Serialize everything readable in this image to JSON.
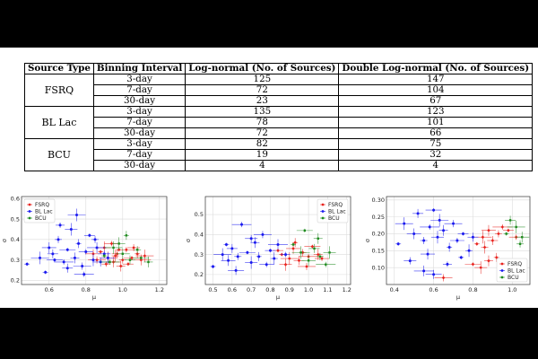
{
  "table": {
    "headers": [
      "Source Type",
      "Binning Interval",
      "Log-normal (No. of Sources)",
      "Double Log-normal (No. of Sources)"
    ],
    "groups": [
      {
        "source": "FSRQ",
        "rows": [
          {
            "interval": "3-day",
            "lognormal": "125",
            "double": "147"
          },
          {
            "interval": "7-day",
            "lognormal": "72",
            "double": "104"
          },
          {
            "interval": "30-day",
            "lognormal": "23",
            "double": "67"
          }
        ]
      },
      {
        "source": "BL Lac",
        "rows": [
          {
            "interval": "3-day",
            "lognormal": "135",
            "double": "123"
          },
          {
            "interval": "7-day",
            "lognormal": "78",
            "double": "101"
          },
          {
            "interval": "30-day",
            "lognormal": "72",
            "double": "66"
          }
        ]
      },
      {
        "source": "BCU",
        "rows": [
          {
            "interval": "3-day",
            "lognormal": "82",
            "double": "75"
          },
          {
            "interval": "7-day",
            "lognormal": "19",
            "double": "32"
          },
          {
            "interval": "30-day",
            "lognormal": "4",
            "double": "4"
          }
        ]
      }
    ]
  },
  "colors": {
    "FSRQ": "#e8231e",
    "BL Lac": "#1a1aef",
    "BCU": "#1f8a1f"
  },
  "chart_data": [
    {
      "type": "scatter",
      "xlabel": "μ",
      "ylabel": "σ",
      "xlim": [
        0.45,
        1.24
      ],
      "ylim": [
        0.18,
        0.61
      ],
      "xticks": [
        0.6,
        0.8,
        1.0,
        1.2
      ],
      "yticks": [
        0.2,
        0.3,
        0.4,
        0.5,
        0.6
      ],
      "xtick_labels": [
        "0.6",
        "0.8",
        "1.0",
        "1.2"
      ],
      "ytick_labels": [
        "0.2",
        "0.3",
        "0.4",
        "0.5",
        "0.6"
      ],
      "grid": true,
      "legend": "top-left",
      "series": [
        {
          "name": "FSRQ",
          "points": [
            [
              0.88,
              0.34
            ],
            [
              0.92,
              0.31
            ],
            [
              0.95,
              0.29
            ],
            [
              0.97,
              0.33
            ],
            [
              1.0,
              0.3
            ],
            [
              1.02,
              0.35
            ],
            [
              1.05,
              0.31
            ],
            [
              0.9,
              0.36
            ],
            [
              0.99,
              0.27
            ],
            [
              1.08,
              0.33
            ],
            [
              0.86,
              0.3
            ],
            [
              0.94,
              0.38
            ],
            [
              1.03,
              0.28
            ],
            [
              0.96,
              0.32
            ],
            [
              1.1,
              0.3
            ],
            [
              0.84,
              0.33
            ],
            [
              1.06,
              0.36
            ],
            [
              0.91,
              0.28
            ],
            [
              0.98,
              0.35
            ],
            [
              1.12,
              0.32
            ]
          ]
        },
        {
          "name": "BL Lac",
          "points": [
            [
              0.48,
              0.28
            ],
            [
              0.55,
              0.31
            ],
            [
              0.6,
              0.36
            ],
            [
              0.62,
              0.33
            ],
            [
              0.65,
              0.4
            ],
            [
              0.68,
              0.29
            ],
            [
              0.7,
              0.35
            ],
            [
              0.72,
              0.45
            ],
            [
              0.74,
              0.31
            ],
            [
              0.76,
              0.38
            ],
            [
              0.78,
              0.27
            ],
            [
              0.8,
              0.34
            ],
            [
              0.82,
              0.42
            ],
            [
              0.84,
              0.3
            ],
            [
              0.86,
              0.36
            ],
            [
              0.88,
              0.29
            ],
            [
              0.9,
              0.33
            ],
            [
              0.66,
              0.47
            ],
            [
              0.58,
              0.24
            ],
            [
              0.75,
              0.52
            ],
            [
              0.92,
              0.31
            ],
            [
              0.7,
              0.26
            ],
            [
              0.85,
              0.4
            ],
            [
              0.79,
              0.23
            ],
            [
              0.63,
              0.3
            ]
          ]
        },
        {
          "name": "BCU",
          "points": [
            [
              0.9,
              0.32
            ],
            [
              0.95,
              0.36
            ],
            [
              1.0,
              0.33
            ],
            [
              1.04,
              0.3
            ],
            [
              1.08,
              0.35
            ],
            [
              0.93,
              0.29
            ],
            [
              1.1,
              0.31
            ],
            [
              0.98,
              0.38
            ],
            [
              1.14,
              0.29
            ],
            [
              1.02,
              0.42
            ]
          ]
        }
      ]
    },
    {
      "type": "scatter",
      "xlabel": "μ",
      "ylabel": "σ",
      "xlim": [
        0.46,
        1.22
      ],
      "ylim": [
        0.15,
        0.59
      ],
      "xticks": [
        0.5,
        0.6,
        0.7,
        0.8,
        0.9,
        1.0,
        1.1,
        1.2
      ],
      "yticks": [
        0.2,
        0.3,
        0.4,
        0.5
      ],
      "xtick_labels": [
        "0.5",
        "0.6",
        "0.7",
        "0.8",
        "0.9",
        "1.0",
        "1.1",
        "1.2"
      ],
      "ytick_labels": [
        "0.2",
        "0.3",
        "0.4",
        "0.5"
      ],
      "grid": true,
      "legend": "top-right",
      "series": [
        {
          "name": "FSRQ",
          "points": [
            [
              0.86,
              0.3
            ],
            [
              0.9,
              0.28
            ],
            [
              0.92,
              0.33
            ],
            [
              0.95,
              0.27
            ],
            [
              0.97,
              0.31
            ],
            [
              1.0,
              0.29
            ],
            [
              1.02,
              0.34
            ],
            [
              0.88,
              0.25
            ],
            [
              1.05,
              0.3
            ],
            [
              0.93,
              0.36
            ],
            [
              0.99,
              0.24
            ],
            [
              1.07,
              0.28
            ],
            [
              0.84,
              0.32
            ]
          ]
        },
        {
          "name": "BL Lac",
          "points": [
            [
              0.5,
              0.24
            ],
            [
              0.55,
              0.3
            ],
            [
              0.58,
              0.27
            ],
            [
              0.6,
              0.33
            ],
            [
              0.63,
              0.29
            ],
            [
              0.65,
              0.45
            ],
            [
              0.68,
              0.31
            ],
            [
              0.7,
              0.26
            ],
            [
              0.72,
              0.36
            ],
            [
              0.74,
              0.29
            ],
            [
              0.76,
              0.4
            ],
            [
              0.78,
              0.25
            ],
            [
              0.8,
              0.32
            ],
            [
              0.82,
              0.28
            ],
            [
              0.84,
              0.35
            ],
            [
              0.62,
              0.22
            ],
            [
              0.7,
              0.38
            ],
            [
              0.88,
              0.3
            ],
            [
              0.57,
              0.35
            ]
          ]
        },
        {
          "name": "BCU",
          "points": [
            [
              0.92,
              0.35
            ],
            [
              0.96,
              0.31
            ],
            [
              1.0,
              0.27
            ],
            [
              1.03,
              0.33
            ],
            [
              1.06,
              0.29
            ],
            [
              1.09,
              0.25
            ],
            [
              0.98,
              0.42
            ],
            [
              1.11,
              0.31
            ],
            [
              1.05,
              0.38
            ]
          ]
        }
      ]
    },
    {
      "type": "scatter",
      "xlabel": "μ",
      "ylabel": "σ",
      "xlim": [
        0.36,
        1.09
      ],
      "ylim": [
        0.05,
        0.31
      ],
      "xticks": [
        0.4,
        0.6,
        0.8,
        1.0
      ],
      "yticks": [
        0.1,
        0.15,
        0.2,
        0.25,
        0.3
      ],
      "xtick_labels": [
        "0.4",
        "0.6",
        "0.8",
        "1.0"
      ],
      "ytick_labels": [
        "0.10",
        "0.15",
        "0.20",
        "0.25",
        "0.30"
      ],
      "grid": true,
      "legend": "bottom-right",
      "series": [
        {
          "name": "FSRQ",
          "points": [
            [
              0.82,
              0.17
            ],
            [
              0.85,
              0.19
            ],
            [
              0.88,
              0.21
            ],
            [
              0.9,
              0.18
            ],
            [
              0.93,
              0.2
            ],
            [
              0.95,
              0.22
            ],
            [
              0.8,
              0.11
            ],
            [
              0.84,
              0.1
            ],
            [
              0.88,
              0.12
            ],
            [
              0.92,
              0.13
            ],
            [
              0.65,
              0.07
            ],
            [
              1.02,
              0.19
            ],
            [
              0.98,
              0.21
            ],
            [
              0.86,
              0.16
            ]
          ]
        },
        {
          "name": "BL Lac",
          "points": [
            [
              0.42,
              0.17
            ],
            [
              0.45,
              0.23
            ],
            [
              0.5,
              0.2
            ],
            [
              0.52,
              0.26
            ],
            [
              0.55,
              0.18
            ],
            [
              0.58,
              0.22
            ],
            [
              0.6,
              0.27
            ],
            [
              0.62,
              0.19
            ],
            [
              0.65,
              0.21
            ],
            [
              0.68,
              0.16
            ],
            [
              0.7,
              0.23
            ],
            [
              0.72,
              0.18
            ],
            [
              0.75,
              0.2
            ],
            [
              0.78,
              0.15
            ],
            [
              0.55,
              0.09
            ],
            [
              0.6,
              0.08
            ],
            [
              0.48,
              0.12
            ],
            [
              0.67,
              0.11
            ],
            [
              0.74,
              0.13
            ],
            [
              0.63,
              0.24
            ],
            [
              0.57,
              0.14
            ],
            [
              0.8,
              0.19
            ]
          ]
        },
        {
          "name": "BCU",
          "points": [
            [
              0.97,
              0.2
            ],
            [
              1.02,
              0.22
            ],
            [
              1.05,
              0.19
            ],
            [
              0.99,
              0.24
            ],
            [
              1.04,
              0.17
            ]
          ]
        }
      ]
    }
  ]
}
